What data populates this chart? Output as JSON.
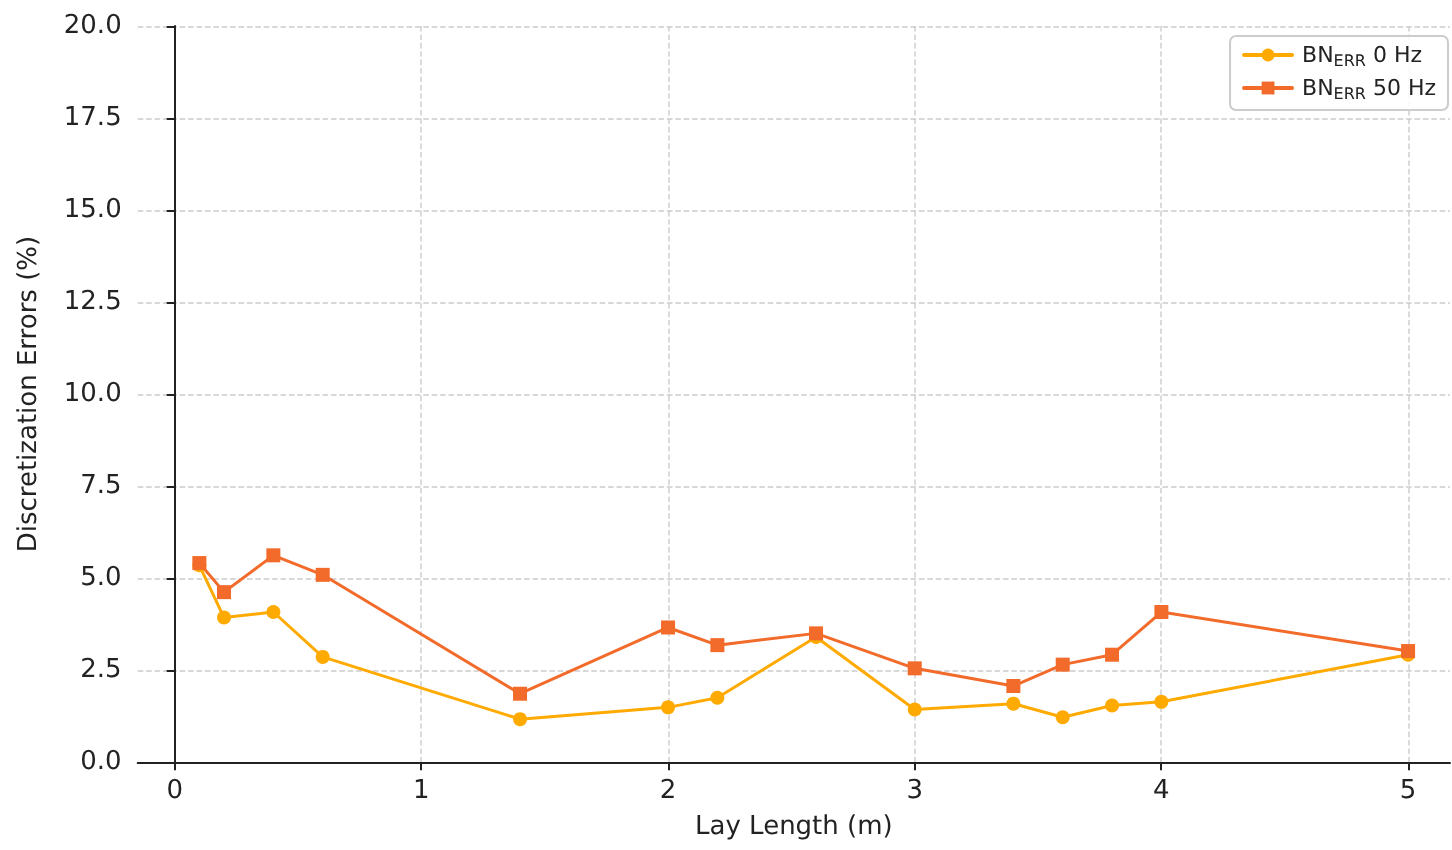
{
  "chart_data": {
    "type": "line",
    "xlabel": "Lay Length (m)",
    "ylabel": "Discretization Errors (%)",
    "x": [
      0.1,
      0.2,
      0.4,
      0.6,
      1.4,
      2.0,
      2.2,
      2.6,
      3.0,
      3.4,
      3.6,
      3.8,
      4.0,
      5.0
    ],
    "series": [
      {
        "name": "BN$_{ERR}$ 0 Hz",
        "color": "#ffaa00",
        "marker": "circle",
        "values": [
          5.35,
          3.93,
          4.08,
          2.86,
          1.17,
          1.49,
          1.75,
          3.4,
          1.43,
          1.59,
          1.22,
          1.54,
          1.64,
          2.92
        ]
      },
      {
        "name": "BN$_{ERR}$ 50 Hz",
        "color": "#f26b2a",
        "marker": "square",
        "values": [
          5.41,
          4.62,
          5.62,
          5.09,
          1.86,
          3.66,
          3.18,
          3.5,
          2.55,
          2.07,
          2.65,
          2.92,
          4.08,
          3.02
        ]
      }
    ],
    "xlim": [
      -0.15,
      5.17
    ],
    "xticks": [
      0,
      1,
      2,
      3,
      4,
      5
    ],
    "ylim": [
      0,
      20
    ],
    "yticks": [
      {
        "value": 0,
        "label": "0.0"
      },
      {
        "value": 2.5,
        "label": "2.5"
      },
      {
        "value": 5,
        "label": "5.0"
      },
      {
        "value": 7.5,
        "label": "7.5"
      },
      {
        "value": 10,
        "label": "10.0"
      },
      {
        "value": 12.5,
        "label": "12.5"
      },
      {
        "value": 15,
        "label": "15.0"
      },
      {
        "value": 17.5,
        "label": "17.5"
      },
      {
        "value": 20,
        "label": "20.0"
      }
    ],
    "grid": true,
    "legend": "top right",
    "line_style": "solid"
  }
}
